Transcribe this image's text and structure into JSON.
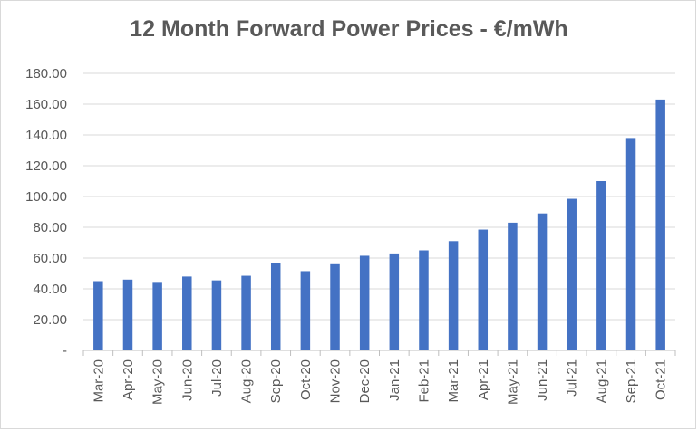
{
  "chart_data": {
    "type": "bar",
    "title": "12 Month Forward Power Prices - €/mWh",
    "xlabel": "",
    "ylabel": "",
    "categories": [
      "Mar-20",
      "Apr-20",
      "May-20",
      "Jun-20",
      "Jul-20",
      "Aug-20",
      "Sep-20",
      "Oct-20",
      "Nov-20",
      "Dec-20",
      "Jan-21",
      "Feb-21",
      "Mar-21",
      "Apr-21",
      "May-21",
      "Jun-21",
      "Jul-21",
      "Aug-21",
      "Sep-21",
      "Oct-21"
    ],
    "values": [
      45.0,
      46.0,
      44.5,
      48.0,
      45.5,
      48.5,
      57.0,
      51.5,
      56.0,
      61.5,
      63.0,
      65.0,
      71.0,
      78.5,
      83.0,
      89.0,
      98.5,
      110.0,
      138.0,
      163.0
    ],
    "ylim": [
      0,
      180
    ],
    "yticks": [
      0,
      20,
      40,
      60,
      80,
      100,
      120,
      140,
      160,
      180
    ],
    "ytick_labels": [
      "-",
      "20.00",
      "40.00",
      "60.00",
      "80.00",
      "100.00",
      "120.00",
      "140.00",
      "160.00",
      "180.00"
    ],
    "grid": true,
    "bar_color": "#4472c4",
    "grid_color": "#d9d9d9"
  }
}
